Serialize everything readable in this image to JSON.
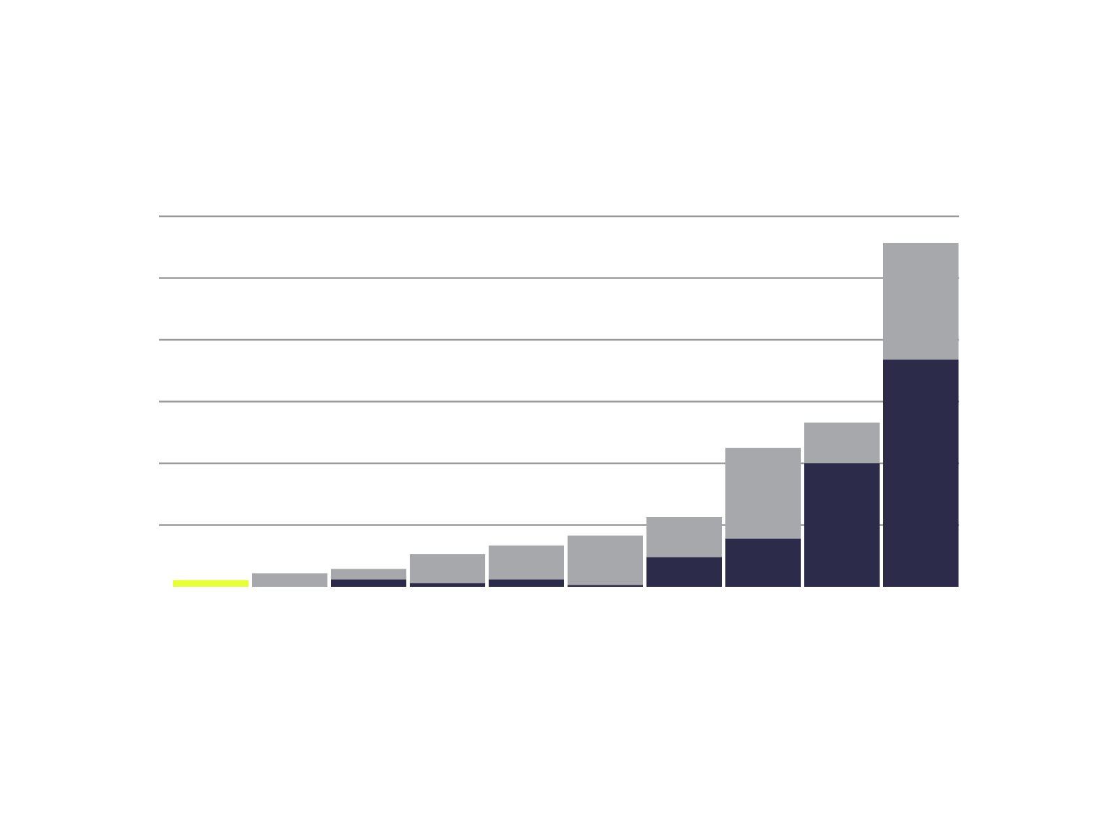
{
  "chart_data": {
    "type": "bar",
    "stacked": true,
    "categories": [
      "",
      "",
      "",
      "",
      "",
      "",
      "",
      "",
      "",
      ""
    ],
    "series": [
      {
        "values": [
          0,
          0,
          0.6,
          0.3,
          0.6,
          0.15,
          2.4,
          3.9,
          10.0,
          18.4
        ]
      },
      {
        "values": [
          0,
          1.1,
          0.85,
          2.35,
          2.75,
          4.0,
          3.25,
          7.35,
          3.3,
          9.45
        ]
      },
      {
        "values": [
          0.55,
          0,
          0,
          0,
          0,
          0,
          0,
          0,
          0,
          0
        ]
      }
    ],
    "colors": [
      "#2c2b4a",
      "#a7a8ab",
      "#e7ff3a"
    ],
    "ylim": [
      0,
      30
    ],
    "yticks": [
      0,
      5,
      10,
      15,
      20,
      25,
      30
    ],
    "grid": true,
    "gridline_color": "#9a9a9a",
    "background": "#ffffff"
  }
}
